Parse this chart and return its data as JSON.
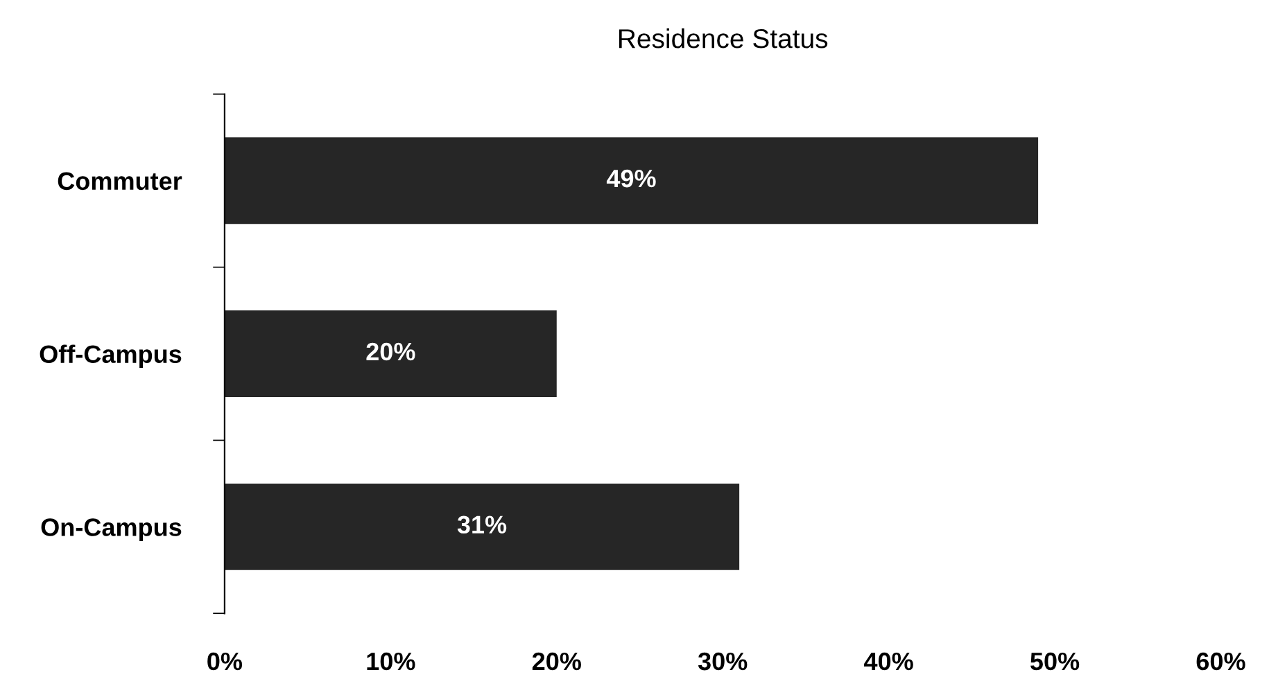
{
  "chart_data": {
    "type": "bar",
    "orientation": "horizontal",
    "title": "Residence Status",
    "categories": [
      "Commuter",
      "Off-Campus",
      "On-Campus"
    ],
    "values": [
      49,
      20,
      31
    ],
    "color": "#262626",
    "value_labels": [
      "49%",
      "20%",
      "31%"
    ],
    "xlim": [
      0,
      60
    ],
    "xticks": [
      {
        "value": 0,
        "label": "0%"
      },
      {
        "value": 10,
        "label": "10%"
      },
      {
        "value": 20,
        "label": "20%"
      },
      {
        "value": 30,
        "label": "30%"
      },
      {
        "value": 40,
        "label": "40%"
      },
      {
        "value": 50,
        "label": "50%"
      },
      {
        "value": 60,
        "label": "60%"
      }
    ],
    "grid": false,
    "legend": false
  }
}
